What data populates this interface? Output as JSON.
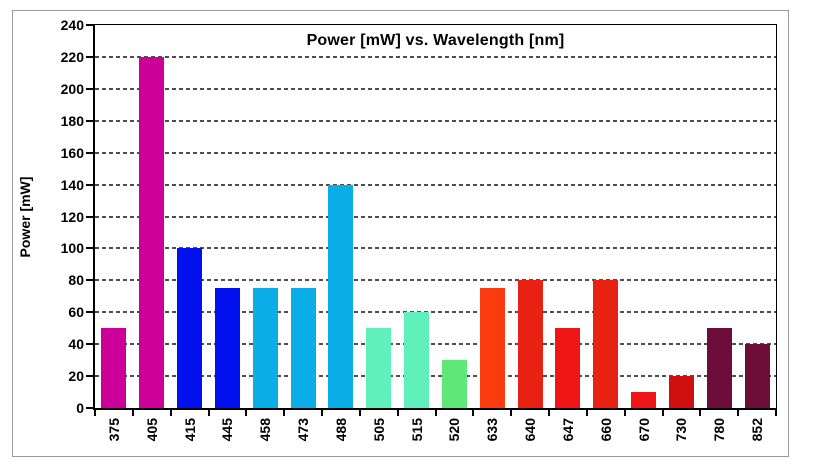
{
  "chart_data": {
    "type": "bar",
    "title": "Power [mW] vs. Wavelength [nm]",
    "ylabel": "Power [mW]",
    "xlabel": "",
    "ylim": [
      0,
      240
    ],
    "ytick_step": 20,
    "yticks": [
      0,
      20,
      40,
      60,
      80,
      100,
      120,
      140,
      160,
      180,
      200,
      220,
      240
    ],
    "grid": "dashed-horizontal",
    "legend": "none",
    "categories": [
      "375",
      "405",
      "415",
      "445",
      "458",
      "473",
      "488",
      "505",
      "515",
      "520",
      "633",
      "640",
      "647",
      "660",
      "670",
      "730",
      "780",
      "852"
    ],
    "values": [
      50,
      220,
      100,
      75,
      75,
      75,
      140,
      50,
      60,
      30,
      75,
      80,
      50,
      80,
      10,
      20,
      50,
      40
    ],
    "bar_colors": [
      "#CC0099",
      "#CC0099",
      "#0011EE",
      "#0011EE",
      "#0AADE5",
      "#0AADE5",
      "#0AADE5",
      "#5FF0BC",
      "#5FF0BC",
      "#5FE878",
      "#FA3B0E",
      "#E82112",
      "#EF1616",
      "#E82112",
      "#EF1616",
      "#D10E0E",
      "#6D0E3A",
      "#6D0E3A"
    ],
    "colors": {
      "grid": "#4d4d4d",
      "axis": "#000000",
      "frame_border": "#9a9a9a",
      "background": "#ffffff",
      "text": "#000000"
    }
  }
}
